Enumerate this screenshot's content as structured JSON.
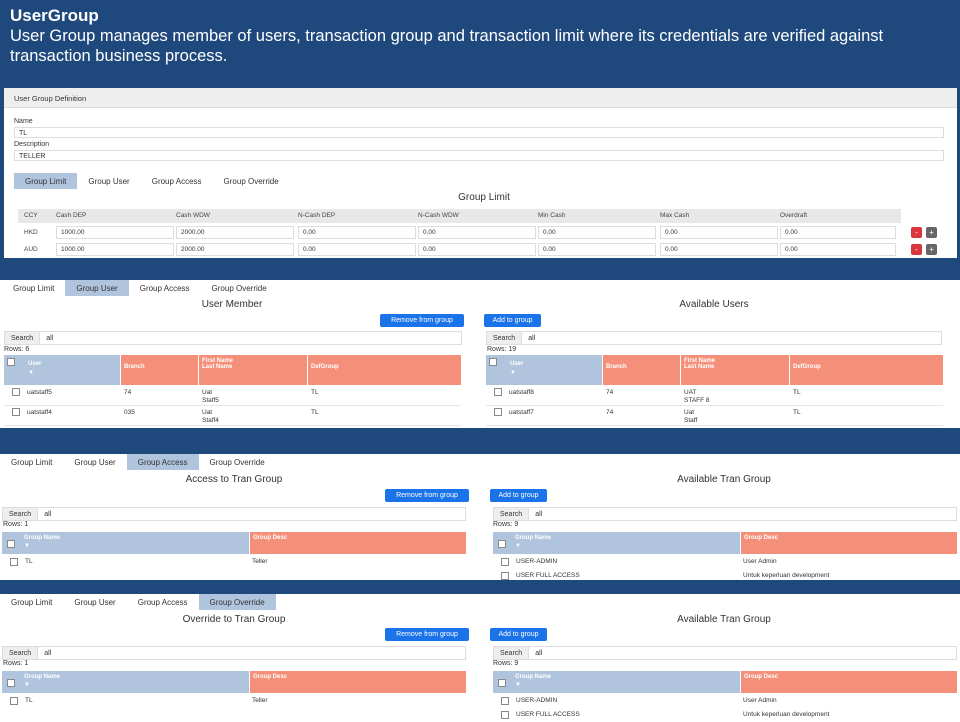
{
  "header": {
    "title": "UserGroup",
    "desc": "User Group manages member of users, transaction group and transaction limit where its credentials are verified against transaction business process."
  },
  "definition": {
    "panel_title": "User Group Definition",
    "name_label": "Name",
    "name_value": "TL",
    "desc_label": "Description",
    "desc_value": "TELLER"
  },
  "tabs": [
    "Group Limit",
    "Group User",
    "Group Access",
    "Group Override"
  ],
  "group_limit": {
    "title": "Group Limit",
    "columns": [
      "CCY",
      "Cash DEP",
      "Cash WDW",
      "N-Cash DEP",
      "N-Cash WDW",
      "Min Cash",
      "Max Cash",
      "Overdraft"
    ],
    "rows": [
      [
        "HKD",
        "1000.00",
        "2000.00",
        "0.00",
        "0.00",
        "0.00",
        "0.00",
        "0.00"
      ],
      [
        "AUD",
        "1000.00",
        "2000.00",
        "0.00",
        "0.00",
        "0.00",
        "0.00",
        "0.00"
      ]
    ],
    "remove_glyph": "-",
    "add_glyph": "+"
  },
  "group_user": {
    "left_title": "User Member",
    "right_title": "Available Users",
    "remove_btn": "Remove from group",
    "add_btn": "Add to group",
    "search_label": "Search",
    "search_value": "all",
    "left_rows": "Rows: 6",
    "right_rows": "Rows: 19",
    "cols": {
      "user": "User",
      "branch": "Branch",
      "first": "First Name",
      "last": "Last Name",
      "def": "DefGroup",
      "sort": "▼"
    },
    "left": [
      {
        "user": "uatstaff5",
        "branch": "74",
        "first": "Uat",
        "last": "Staff5",
        "def": "TL"
      },
      {
        "user": "uatstaff4",
        "branch": "035",
        "first": "Uat",
        "last": "Staff4",
        "def": "TL"
      }
    ],
    "right": [
      {
        "user": "uatstaff8",
        "branch": "74",
        "first": "UAT",
        "last": "STAFF 8",
        "def": "TL"
      },
      {
        "user": "uatstaff7",
        "branch": "74",
        "first": "Uat",
        "last": "Staff",
        "def": "TL"
      }
    ]
  },
  "group_access": {
    "left_title": "Access to Tran Group",
    "right_title": "Available Tran Group",
    "left_rows": "Rows: 1",
    "right_rows": "Rows: 9",
    "cols": {
      "name": "Group Name",
      "desc": "Group Desc"
    },
    "left": [
      {
        "name": "TL",
        "desc": "Teller"
      }
    ],
    "right": [
      {
        "name": "USER-ADMIN",
        "desc": "User Admin"
      },
      {
        "name": "USER FULL ACCESS",
        "desc": "Untuk keperluan development"
      }
    ]
  },
  "group_override": {
    "left_title": "Override to Tran Group",
    "right_title": "Available Tran Group",
    "left_rows": "Rows: 1",
    "right_rows": "Rows: 9",
    "left": [
      {
        "name": "TL",
        "desc": "Teller"
      }
    ],
    "right": [
      {
        "name": "USER-ADMIN",
        "desc": "User Admin"
      },
      {
        "name": "USER FULL ACCESS",
        "desc": "Untuk keperluan development"
      }
    ]
  }
}
